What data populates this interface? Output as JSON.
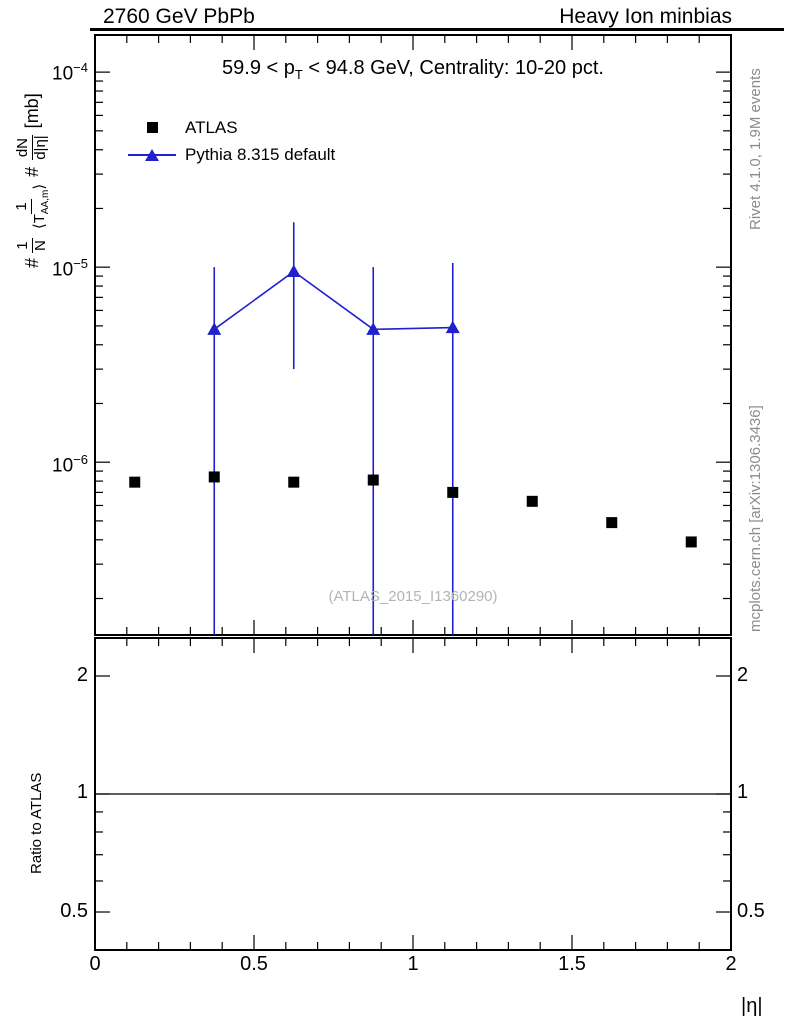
{
  "header": {
    "left": "2760 GeV PbPb",
    "right": "Heavy Ion minbias"
  },
  "side_notes": {
    "top_right": "Rivet 4.1.0,  1.9M events",
    "bottom_right": "mcplots.cern.ch [arXiv:1306.3436]"
  },
  "main_plot": {
    "title_pre": "59.9 < p",
    "title_sub": "T",
    "title_post": " < 94.8 GeV, Centrality: 10-20 pct.",
    "watermark": "(ATLAS_2015_I1360290)",
    "ylabel": {
      "hash": "#",
      "f1n": "1",
      "f1d": "N",
      "f2n": "1",
      "f2d_pre": "⟨T",
      "f2d_sub": "AA,m",
      "f2d_post": "⟩",
      "f3n": "dN",
      "f3d": "d|η|",
      "unit": "[mb]"
    },
    "yticks": [
      {
        "base": "10",
        "exp": "−4"
      },
      {
        "base": "10",
        "exp": "−5"
      },
      {
        "base": "10",
        "exp": "−6"
      }
    ],
    "legend": [
      {
        "label": "ATLAS",
        "marker": "filled-square",
        "color": "#000000"
      },
      {
        "label": "Pythia 8.315 default",
        "marker": "line-triangle",
        "color": "#2020cc"
      }
    ]
  },
  "ratio_panel": {
    "ylabel": "Ratio to ATLAS",
    "yticks": [
      "2",
      "1",
      "0.5"
    ]
  },
  "xaxis": {
    "label": "|η|",
    "ticks": [
      "0",
      "0.5",
      "1",
      "1.5",
      "2"
    ]
  },
  "chart_data": [
    {
      "type": "scatter",
      "title": "59.9 < pT < 94.8 GeV, Centrality: 10-20 pct.",
      "xlabel": "|η|",
      "ylabel": "1/N 1/<T_AA,m> dN/d|η| [mb]",
      "xlim": [
        0,
        2
      ],
      "ylim_log": [
        1.3e-07,
        0.000155
      ],
      "ytick_values": [
        1e-06,
        1e-05,
        0.0001
      ],
      "xticks": [
        0,
        0.5,
        1,
        1.5,
        2
      ],
      "legend_position": "top-left-inside",
      "grid": false,
      "series": [
        {
          "name": "ATLAS",
          "marker": "square",
          "color": "#000000",
          "x": [
            0.125,
            0.375,
            0.625,
            0.875,
            1.125,
            1.375,
            1.625,
            1.875
          ],
          "y": [
            7.9e-07,
            8.4e-07,
            7.9e-07,
            8.1e-07,
            7e-07,
            6.3e-07,
            4.9e-07,
            3.9e-07
          ]
        },
        {
          "name": "Pythia 8.315 default",
          "marker": "triangle-line",
          "color": "#2020cc",
          "x": [
            0.375,
            0.625,
            0.875,
            1.125
          ],
          "y": [
            4.8e-06,
            9.5e-06,
            4.8e-06,
            4.9e-06
          ],
          "y_hi": [
            1e-05,
            1.7e-05,
            1e-05,
            1.05e-05
          ],
          "y_lo": [
            1e-07,
            3e-06,
            1e-07,
            1e-07
          ]
        }
      ]
    },
    {
      "type": "line",
      "ylabel": "Ratio to ATLAS",
      "xlim": [
        0,
        2
      ],
      "ylim_log": [
        0.4,
        2.5
      ],
      "ytick_values": [
        0.5,
        1,
        2
      ],
      "reference_line": 1,
      "series": []
    }
  ]
}
